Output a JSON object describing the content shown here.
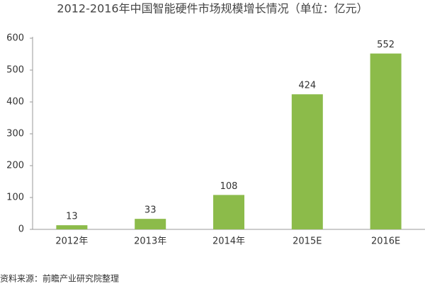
{
  "chart_data": {
    "type": "bar",
    "title": "2012-2016年中国智能硬件市场规模增长情况（单位：亿元）",
    "categories": [
      "2012年",
      "2013年",
      "2014年",
      "2015E",
      "2016E"
    ],
    "values": [
      13,
      33,
      108,
      424,
      552
    ],
    "color": "#8cbb4a",
    "ylim": [
      0,
      600
    ],
    "yticks": [
      0,
      100,
      200,
      300,
      400,
      500,
      600
    ],
    "grid": false,
    "source": "资料来源：前瞻产业研究院整理"
  }
}
